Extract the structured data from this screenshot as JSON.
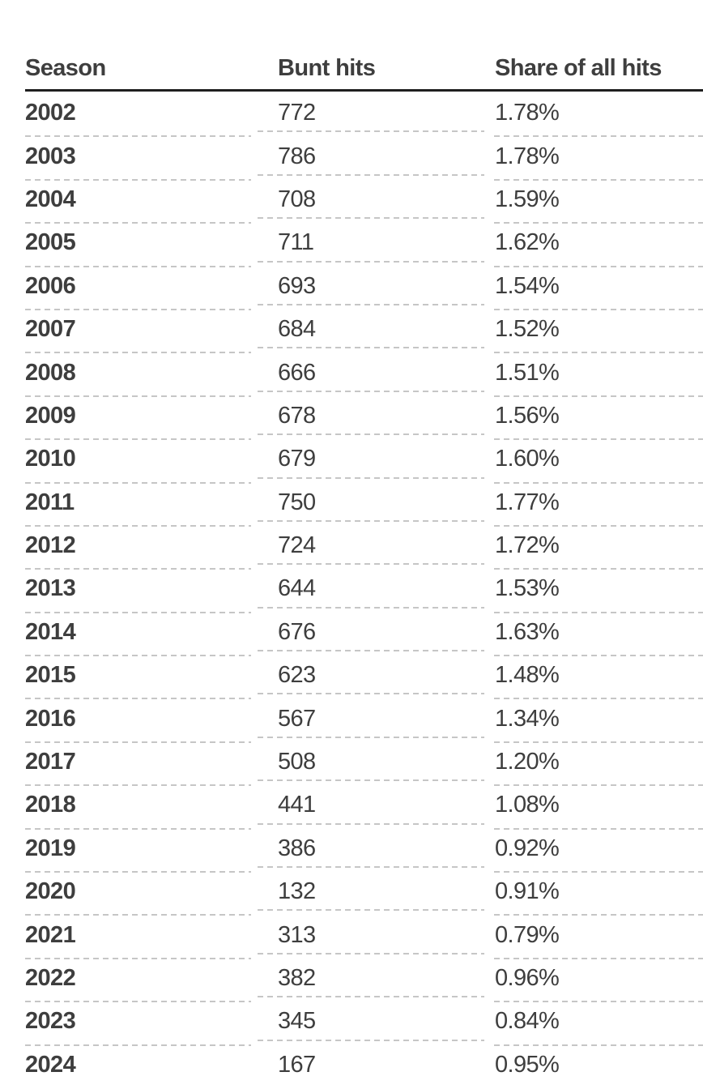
{
  "colors": {
    "text": "#3e3e3e",
    "header_rule": "#1f1f1f",
    "dashed_separator": "#c6c6c6",
    "background": "#ffffff"
  },
  "table": {
    "columns": [
      {
        "label": "Season"
      },
      {
        "label": "Bunt hits"
      },
      {
        "label": "Share of all hits"
      }
    ],
    "rows": [
      {
        "season": "2002",
        "bunt_hits": "772",
        "share": "1.78%"
      },
      {
        "season": "2003",
        "bunt_hits": "786",
        "share": "1.78%"
      },
      {
        "season": "2004",
        "bunt_hits": "708",
        "share": "1.59%"
      },
      {
        "season": "2005",
        "bunt_hits": "711",
        "share": "1.62%"
      },
      {
        "season": "2006",
        "bunt_hits": "693",
        "share": "1.54%"
      },
      {
        "season": "2007",
        "bunt_hits": "684",
        "share": "1.52%"
      },
      {
        "season": "2008",
        "bunt_hits": "666",
        "share": "1.51%"
      },
      {
        "season": "2009",
        "bunt_hits": "678",
        "share": "1.56%"
      },
      {
        "season": "2010",
        "bunt_hits": "679",
        "share": "1.60%"
      },
      {
        "season": "2011",
        "bunt_hits": "750",
        "share": "1.77%"
      },
      {
        "season": "2012",
        "bunt_hits": "724",
        "share": "1.72%"
      },
      {
        "season": "2013",
        "bunt_hits": "644",
        "share": "1.53%"
      },
      {
        "season": "2014",
        "bunt_hits": "676",
        "share": "1.63%"
      },
      {
        "season": "2015",
        "bunt_hits": "623",
        "share": "1.48%"
      },
      {
        "season": "2016",
        "bunt_hits": "567",
        "share": "1.34%"
      },
      {
        "season": "2017",
        "bunt_hits": "508",
        "share": "1.20%"
      },
      {
        "season": "2018",
        "bunt_hits": "441",
        "share": "1.08%"
      },
      {
        "season": "2019",
        "bunt_hits": "386",
        "share": "0.92%"
      },
      {
        "season": "2020",
        "bunt_hits": "132",
        "share": "0.91%"
      },
      {
        "season": "2021",
        "bunt_hits": "313",
        "share": "0.79%"
      },
      {
        "season": "2022",
        "bunt_hits": "382",
        "share": "0.96%"
      },
      {
        "season": "2023",
        "bunt_hits": "345",
        "share": "0.84%"
      },
      {
        "season": "2024",
        "bunt_hits": "167",
        "share": "0.95%"
      }
    ]
  },
  "chart_data": {
    "type": "table",
    "title": "",
    "columns": [
      "Season",
      "Bunt hits",
      "Share of all hits"
    ],
    "categories": [
      2002,
      2003,
      2004,
      2005,
      2006,
      2007,
      2008,
      2009,
      2010,
      2011,
      2012,
      2013,
      2014,
      2015,
      2016,
      2017,
      2018,
      2019,
      2020,
      2021,
      2022,
      2023,
      2024
    ],
    "series": [
      {
        "name": "Bunt hits",
        "values": [
          772,
          786,
          708,
          711,
          693,
          684,
          666,
          678,
          679,
          750,
          724,
          644,
          676,
          623,
          567,
          508,
          441,
          386,
          132,
          313,
          382,
          345,
          167
        ]
      },
      {
        "name": "Share of all hits (%)",
        "values": [
          1.78,
          1.78,
          1.59,
          1.62,
          1.54,
          1.52,
          1.51,
          1.56,
          1.6,
          1.77,
          1.72,
          1.53,
          1.63,
          1.48,
          1.34,
          1.2,
          1.08,
          0.92,
          0.91,
          0.79,
          0.96,
          0.84,
          0.95
        ]
      }
    ]
  }
}
